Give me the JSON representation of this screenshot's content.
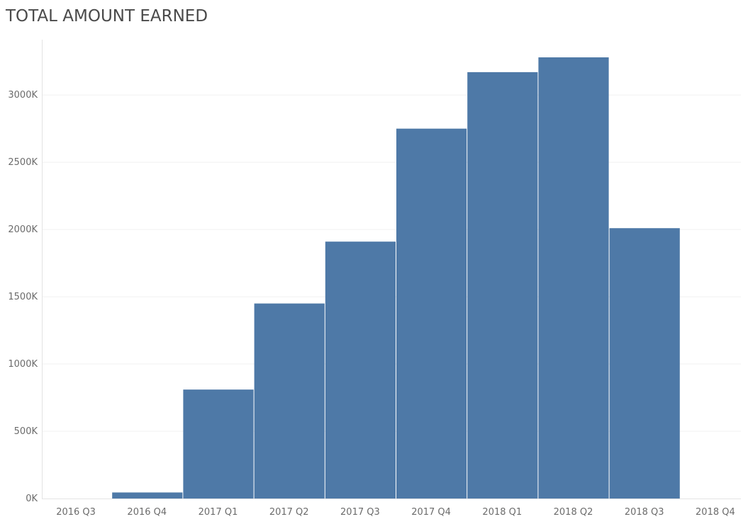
{
  "title": "TOTAL AMOUNT EARNED",
  "colors": {
    "bar": "#4e79a7",
    "gridline": "#f0f0f0",
    "axis": "#e3e3e3",
    "text": "#6b6b6b"
  },
  "chart_data": {
    "type": "bar",
    "title": "TOTAL AMOUNT EARNED",
    "xlabel": "",
    "ylabel": "",
    "categories": [
      "2016 Q3",
      "2016 Q4",
      "2017 Q1",
      "2017 Q2",
      "2017 Q3",
      "2017 Q4",
      "2018 Q1",
      "2018 Q2",
      "2018 Q3",
      "2018 Q4"
    ],
    "values": [
      0,
      45,
      810,
      1450,
      1910,
      2750,
      3170,
      3280,
      2010,
      0
    ],
    "ylim": [
      0,
      3400
    ],
    "yticks": [
      0,
      500,
      1000,
      1500,
      2000,
      2500,
      3000
    ],
    "ytick_labels": [
      "0K",
      "500K",
      "1000K",
      "1500K",
      "2000K",
      "2500K",
      "3000K"
    ],
    "grid": true,
    "legend": "none"
  }
}
